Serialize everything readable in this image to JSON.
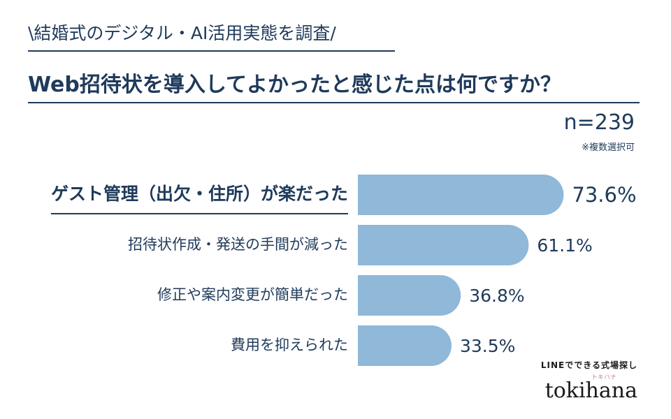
{
  "header": {
    "subtitle": "\\結婚式のデジタル・AI活用実態を調査/",
    "title": "Web招待状を導入してよかったと感じた点は何ですか？",
    "sample_size": "n=239",
    "note": "※複数選択可"
  },
  "chart_data": {
    "type": "bar",
    "orientation": "horizontal",
    "categories": [
      "ゲスト管理（出欠・住所）が楽だった",
      "招待状作成・発送の手間が減った",
      "修正や案内変更が簡単だった",
      "費用を抑えられた"
    ],
    "values": [
      73.6,
      61.1,
      36.8,
      33.5
    ],
    "value_labels": [
      "73.6%",
      "61.1%",
      "36.8%",
      "33.5%"
    ],
    "unit": "%",
    "highlight_index": 0,
    "grid": false,
    "legend": "none"
  },
  "colors": {
    "bar": "#8fb8d9",
    "text": "#1f3a5a",
    "brand_ruby": "#c98a8a"
  },
  "brand": {
    "tagline": "LINEでできる式場探し",
    "ruby": "トキハナ",
    "logo": "tokihana"
  }
}
